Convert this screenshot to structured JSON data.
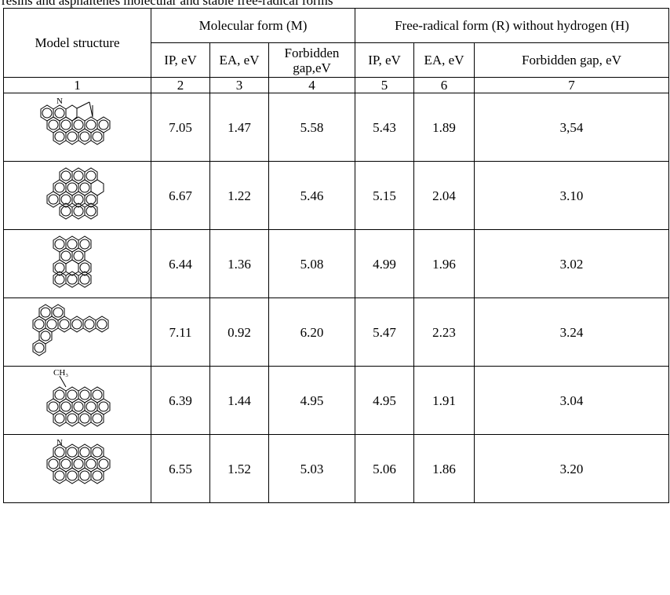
{
  "caption": "resins and asphaltenes molecular and stable free-radical forms",
  "header": {
    "model_structure": "Model structure",
    "molecular_group": "Molecular form (M)",
    "radical_group": "Free-radical form (R) without hydrogen (H)",
    "sub": [
      "IP, eV",
      "EA, eV",
      "Forbidden gap,eV",
      "IP, eV",
      "EA, eV",
      "Forbidden gap, eV"
    ],
    "numbers": [
      "1",
      "2",
      "3",
      "4",
      "5",
      "6",
      "7"
    ]
  },
  "rows": [
    {
      "structure": "N-containing polycyclic aromatic with cyclopentene ring",
      "label": "N",
      "values": [
        "7.05",
        "1.47",
        "5.58",
        "5.43",
        "1.89",
        "3,54"
      ]
    },
    {
      "structure": "polycyclic aromatic",
      "values": [
        "6.67",
        "1.22",
        "5.46",
        "5.15",
        "2.04",
        "3.10"
      ]
    },
    {
      "structure": "polycyclic aromatic",
      "values": [
        "6.44",
        "1.36",
        "5.08",
        "4.99",
        "1.96",
        "3.02"
      ]
    },
    {
      "structure": "polycyclic aromatic with extended chain",
      "values": [
        "7.11",
        "0.92",
        "6.20",
        "5.47",
        "2.23",
        "3.24"
      ]
    },
    {
      "structure": "methyl-substituted polycyclic aromatic",
      "label": "CH₃",
      "values": [
        "6.39",
        "1.44",
        "4.95",
        "4.95",
        "1.91",
        "3.04"
      ]
    },
    {
      "structure": "N-containing polycyclic aromatic",
      "label": "N",
      "values": [
        "6.55",
        "1.52",
        "5.03",
        "5.06",
        "1.86",
        "3.20"
      ]
    }
  ]
}
